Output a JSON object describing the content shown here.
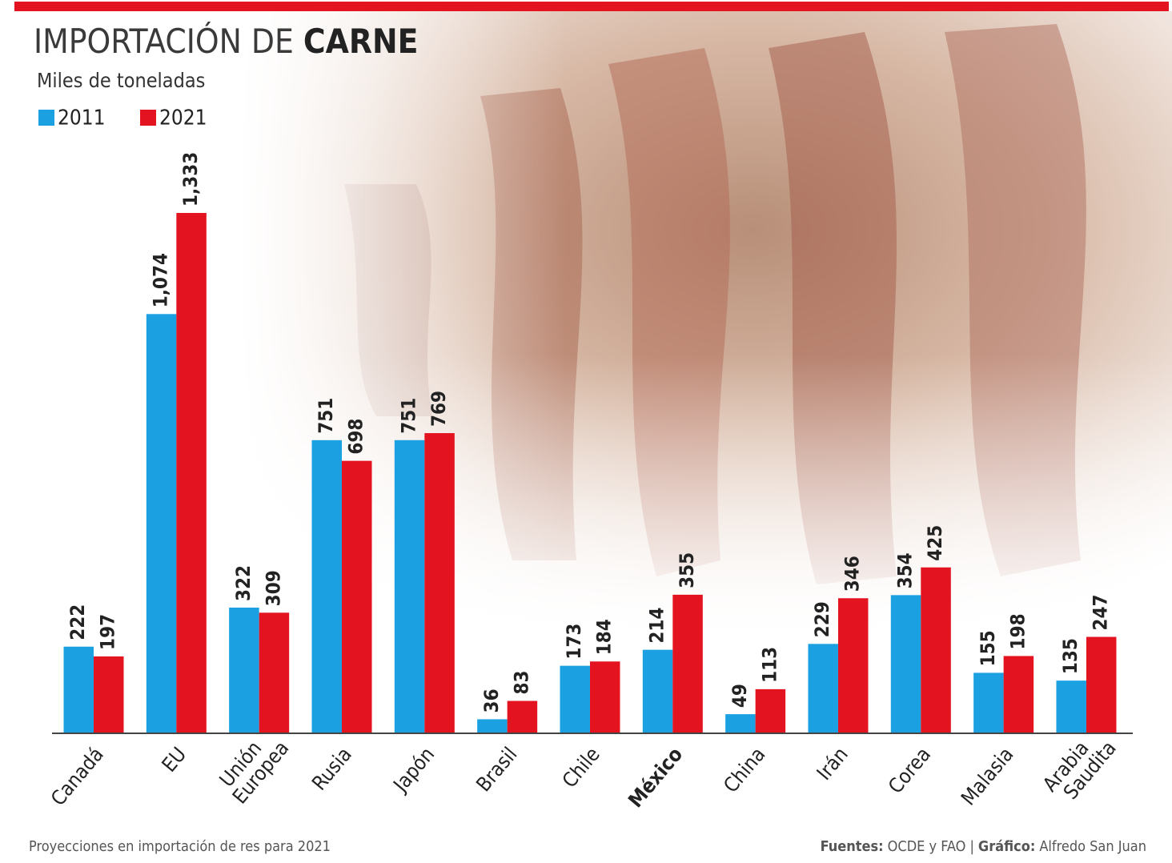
{
  "chart_data": {
    "type": "bar",
    "title": [
      "IMPORTACIÓN DE",
      "CARNE"
    ],
    "subtitle": "Miles de toneladas",
    "categories": [
      "Canadá",
      "EU",
      "Unión Europea",
      "Rusia",
      "Japón",
      "Brasil",
      "Chile",
      "México",
      "China",
      "Irán",
      "Corea",
      "Malasia",
      "Arabia Saudita"
    ],
    "highlight_index": 7,
    "series": [
      {
        "name": "2011",
        "color": "#1ba1e2",
        "values": [
          222,
          1074,
          322,
          751,
          751,
          36,
          173,
          214,
          49,
          229,
          354,
          155,
          135
        ],
        "value_labels": [
          "222",
          "1,074",
          "322",
          "751",
          "751",
          "36",
          "173",
          "214",
          "49",
          "229",
          "354",
          "155",
          "135"
        ]
      },
      {
        "name": "2021",
        "color": "#e3141f",
        "values": [
          197,
          1333,
          309,
          698,
          769,
          83,
          184,
          355,
          113,
          346,
          425,
          198,
          247
        ],
        "value_labels": [
          "197",
          "1,333",
          "309",
          "698",
          "769",
          "83",
          "184",
          "355",
          "113",
          "346",
          "425",
          "198",
          "247"
        ]
      }
    ],
    "note": "Proyecciones en importación de res para 2021",
    "source": [
      "Fuentes:",
      "OCDE y FAO",
      "|",
      "Gráfico:",
      "Alfredo San Juan"
    ]
  }
}
